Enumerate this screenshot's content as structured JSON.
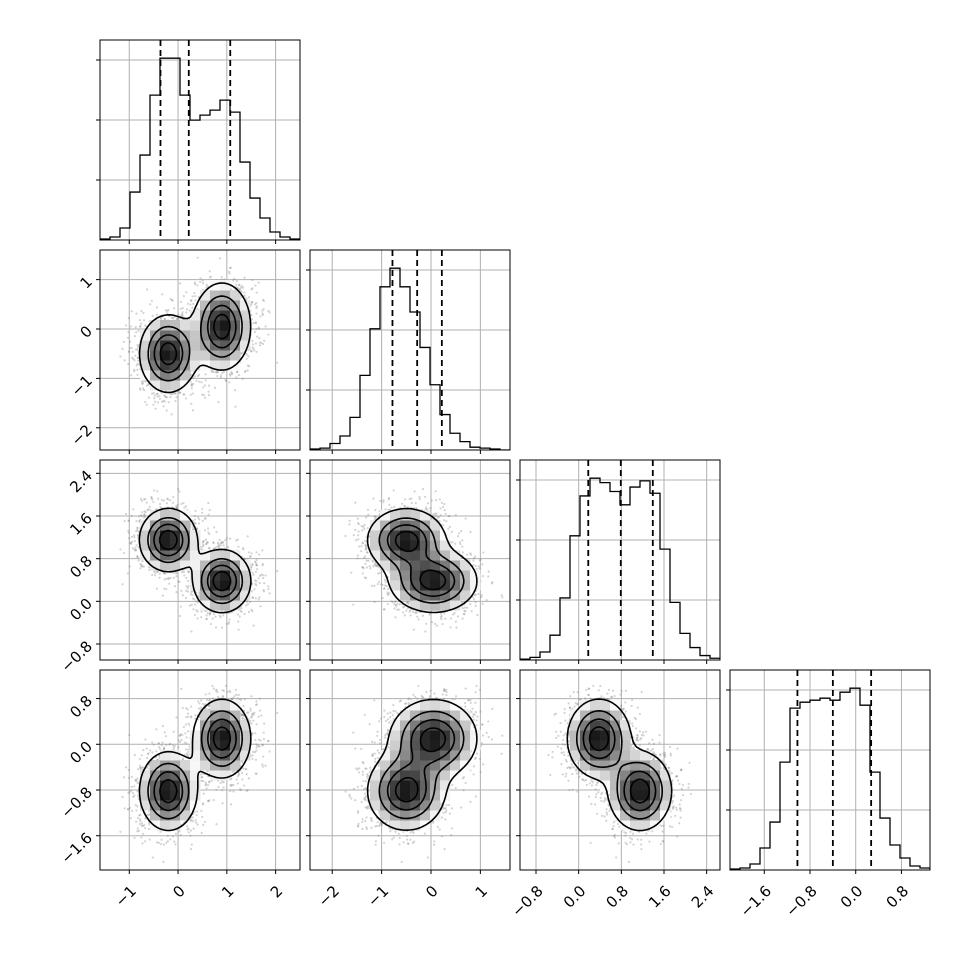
{
  "colors": {
    "axes": "#000000",
    "grid": "#b0b0b0",
    "histogram": "#000000",
    "quantile": "#000000",
    "scatter": "#808080",
    "contour": "#000000",
    "density_low": "#ffffff",
    "density_high": "#000000"
  },
  "chart_data": {
    "type": "corner",
    "title": "",
    "grid": true,
    "dims": 4,
    "ranges": [
      [
        -1.6,
        2.5
      ],
      [
        -2.45,
        1.6
      ],
      [
        -1.1,
        2.65
      ],
      [
        -2.2,
        1.3
      ]
    ],
    "ticks": [
      {
        "values": [
          -1,
          0,
          1,
          2
        ],
        "labels": [
          "−1",
          "0",
          "1",
          "2"
        ]
      },
      {
        "values": [
          -2,
          -1,
          0,
          1
        ],
        "labels": [
          "−2",
          "−1",
          "0",
          "1"
        ]
      },
      {
        "values": [
          -0.8,
          0.0,
          0.8,
          1.6,
          2.4
        ],
        "labels": [
          "−0.8",
          "0.0",
          "0.8",
          "1.6",
          "2.4"
        ]
      },
      {
        "values": [
          -1.6,
          -0.8,
          0.0,
          0.8
        ],
        "labels": [
          "−1.6",
          "−0.8",
          "0.0",
          "0.8"
        ]
      }
    ],
    "quantiles": [
      [
        -0.36,
        0.22,
        1.07
      ],
      [
        -0.78,
        -0.28,
        0.22
      ],
      [
        0.18,
        0.79,
        1.39
      ],
      [
        -1.02,
        -0.4,
        0.27
      ]
    ],
    "marginals": [
      {
        "n_bins": 20,
        "counts": [
          1,
          3,
          12,
          48,
          85,
          145,
          182,
          182,
          145,
          120,
          125,
          130,
          140,
          128,
          78,
          42,
          22,
          8,
          3,
          1
        ]
      },
      {
        "n_bins": 20,
        "counts": [
          1,
          2,
          7,
          15,
          35,
          80,
          130,
          175,
          195,
          175,
          148,
          110,
          70,
          38,
          18,
          9,
          3,
          2,
          1,
          0
        ]
      },
      {
        "n_bins": 20,
        "counts": [
          1,
          3,
          9,
          28,
          70,
          140,
          185,
          205,
          200,
          190,
          175,
          195,
          202,
          188,
          125,
          65,
          30,
          14,
          5,
          2
        ]
      },
      {
        "n_bins": 20,
        "counts": [
          1,
          2,
          6,
          22,
          48,
          108,
          162,
          168,
          170,
          172,
          170,
          178,
          182,
          165,
          98,
          52,
          25,
          12,
          4,
          2
        ]
      }
    ],
    "mixture_components": [
      {
        "mean": [
          -0.2,
          -0.5,
          1.15,
          -0.82
        ],
        "std": [
          0.3,
          0.4,
          0.3,
          0.35
        ]
      },
      {
        "mean": [
          0.9,
          0.05,
          0.38,
          0.1
        ],
        "std": [
          0.3,
          0.45,
          0.3,
          0.35
        ]
      }
    ]
  }
}
